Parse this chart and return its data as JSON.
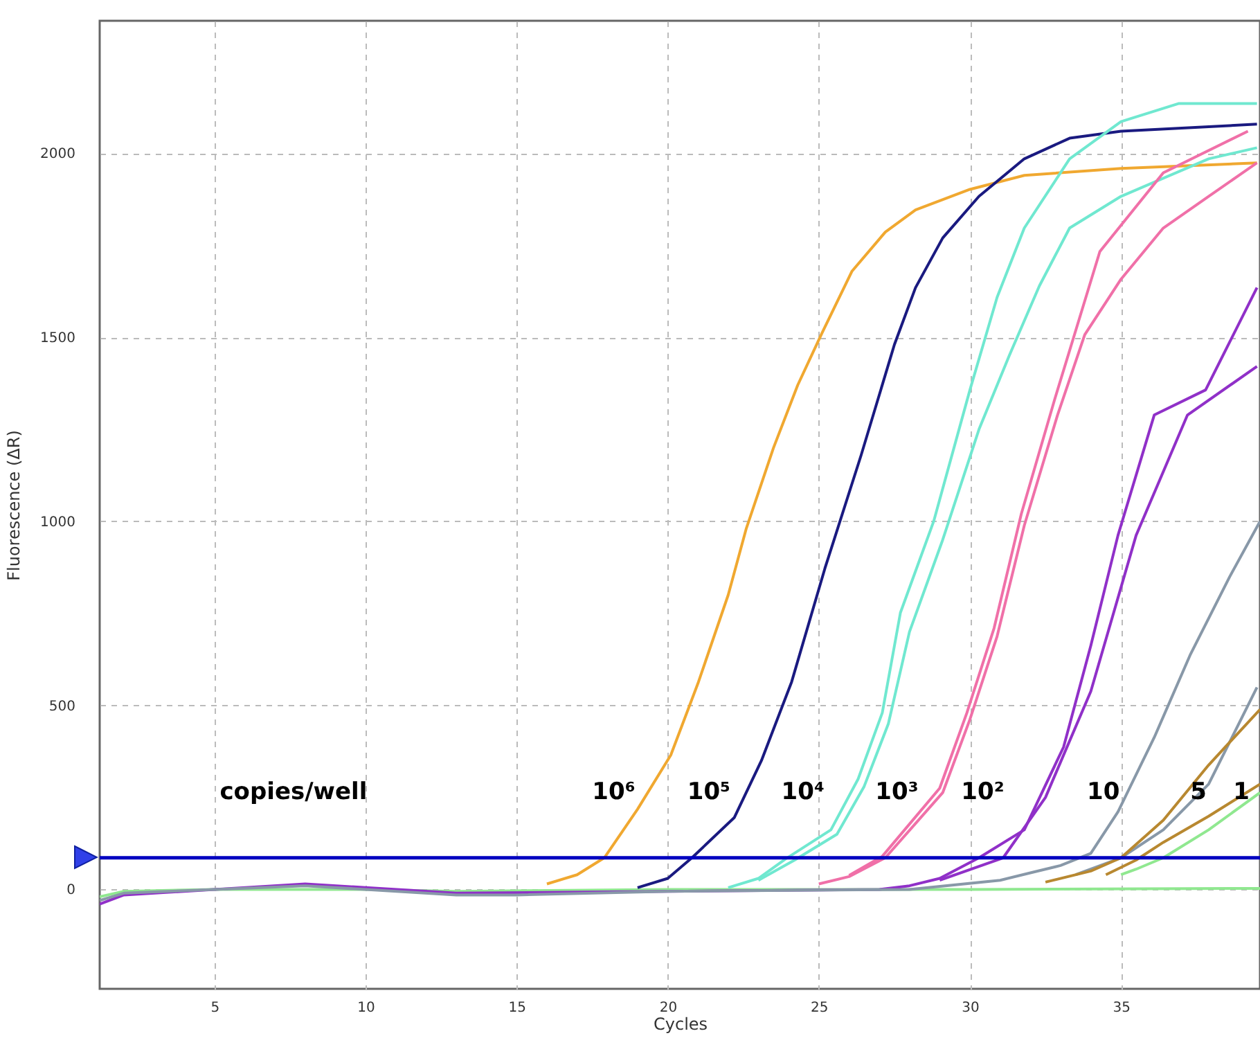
{
  "chart_data": {
    "type": "line",
    "xlabel": "Cycles",
    "ylabel": "Fluorescence (ΔR)",
    "xlim": [
      1.2,
      39.6
    ],
    "ylim": [
      -270,
      2360
    ],
    "xticks": [
      5,
      10,
      15,
      20,
      25,
      30,
      35
    ],
    "yticks": [
      0,
      500,
      1000,
      1500,
      2000
    ],
    "grid": true,
    "line_style": "solid",
    "series": [
      {
        "color": "#90e890",
        "x": [
          1.2,
          2,
          5,
          10,
          13,
          20,
          30,
          39.6
        ],
        "values": [
          -20,
          -5,
          0,
          0,
          -5,
          0,
          0,
          3
        ]
      },
      {
        "color": "#9030c8",
        "x": [
          1.2,
          2,
          5,
          8,
          10,
          13,
          20,
          27,
          28,
          29,
          30.3,
          31.8,
          33.1,
          34,
          34.9,
          36.1,
          37.8,
          39.5
        ],
        "values": [
          -40,
          -15,
          0,
          15,
          5,
          -10,
          -5,
          0,
          10,
          30,
          86,
          162,
          387,
          662,
          962,
          1289,
          1357,
          1635
        ]
      },
      {
        "color": "#8898a8",
        "x": [
          1.2,
          2,
          5,
          8,
          10,
          13,
          15,
          20,
          28,
          31,
          32,
          33,
          34,
          34.9,
          36.1,
          37.3,
          38.6,
          39.6
        ],
        "values": [
          -30,
          -10,
          0,
          10,
          0,
          -15,
          -15,
          -5,
          0,
          25,
          45,
          65,
          98,
          211,
          413,
          639,
          850,
          1000
        ]
      },
      {
        "color": "#f0a830",
        "x": [
          16,
          17,
          17.9,
          19,
          20.1,
          21,
          22,
          22.6,
          23.5,
          24.3,
          25.1,
          26.1,
          27.2,
          28.2,
          30,
          31.8,
          35,
          39.5
        ],
        "values": [
          15,
          40,
          86,
          218,
          365,
          560,
          800,
          981,
          1200,
          1370,
          1511,
          1680,
          1786,
          1846,
          1902,
          1940,
          1959,
          1974
        ]
      },
      {
        "color": "#1a1a80",
        "x": [
          19,
          20,
          20.8,
          22.2,
          23.1,
          24.1,
          25.2,
          26.4,
          27.5,
          28.2,
          29.1,
          30.3,
          31.8,
          33.3,
          35,
          39.5
        ],
        "values": [
          5,
          30,
          86,
          195,
          350,
          564,
          872,
          1180,
          1480,
          1635,
          1770,
          1883,
          1985,
          2041,
          2060,
          2079
        ]
      },
      {
        "color": "#70e8d0",
        "x": [
          22,
          23,
          23.9,
          25.4,
          26.3,
          27.1,
          27.7,
          28.8,
          30,
          30.9,
          31.8,
          33.3,
          35,
          36.9,
          39.5
        ],
        "values": [
          5,
          30,
          83,
          162,
          300,
          480,
          752,
          1000,
          1357,
          1609,
          1797,
          1985,
          2086,
          2135,
          2135
        ]
      },
      {
        "color": "#70e8d0",
        "x": [
          23,
          24.2,
          25.6,
          26.5,
          27.3,
          28,
          29.1,
          30.3,
          31.3,
          32.3,
          33.3,
          35,
          37.9,
          39.5
        ],
        "values": [
          25,
          80,
          150,
          280,
          450,
          700,
          950,
          1250,
          1450,
          1640,
          1797,
          1883,
          1985,
          2015
        ]
      },
      {
        "color": "#f070a8",
        "x": [
          25,
          26,
          27.2,
          29.1,
          30,
          30.9,
          31.8,
          32.9,
          33.8,
          35,
          36.4,
          37.9,
          39.5
        ],
        "values": [
          15,
          35,
          86,
          263,
          462,
          688,
          989,
          1289,
          1507,
          1658,
          1797,
          1883,
          1974
        ]
      },
      {
        "color": "#f070a8",
        "x": [
          26,
          27.1,
          29,
          29.9,
          30.8,
          31.7,
          32.8,
          34.3,
          36.4,
          39.2
        ],
        "values": [
          38,
          90,
          275,
          480,
          710,
          1020,
          1330,
          1733,
          1947,
          2060
        ]
      },
      {
        "color": "#9030c8",
        "x": [
          29,
          31.1,
          32.5,
          34,
          35.5,
          37.2,
          39.5
        ],
        "values": [
          25,
          86,
          250,
          538,
          962,
          1289,
          1421
        ]
      },
      {
        "color": "#8898a8",
        "x": [
          33.5,
          35,
          36.4,
          37.9,
          39.5
        ],
        "values": [
          40,
          86,
          162,
          286,
          549
        ]
      },
      {
        "color": "#b88830",
        "x": [
          32.5,
          34,
          35,
          36.4,
          37.9,
          39.6
        ],
        "values": [
          20,
          50,
          86,
          188,
          338,
          489
        ]
      },
      {
        "color": "#b88830",
        "x": [
          34.5,
          35.5,
          36.4,
          37.9,
          39.6
        ],
        "values": [
          40,
          80,
          128,
          199,
          286
        ]
      },
      {
        "color": "#90e890",
        "x": [
          35,
          35.5,
          36.4,
          37.9,
          39.6
        ],
        "values": [
          40,
          55,
          86,
          162,
          263
        ]
      }
    ],
    "ref_lines": [
      {
        "axis": "y",
        "value": 86,
        "color": "#0000c0",
        "line_style": "solid"
      }
    ],
    "annotations": [
      "copies/well",
      "10⁶",
      "10⁵",
      "10⁴",
      "10³",
      "10²",
      "10",
      "5",
      "1"
    ]
  }
}
